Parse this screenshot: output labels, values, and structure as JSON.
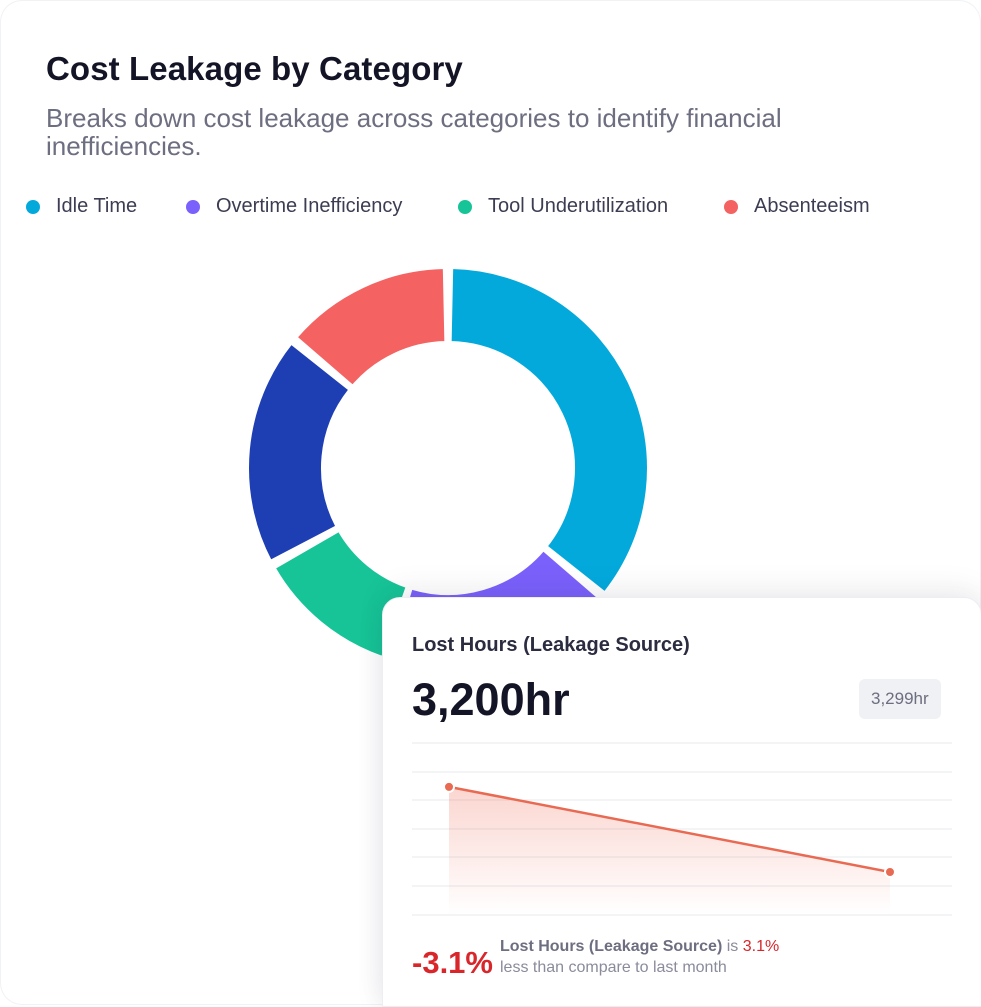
{
  "header": {
    "title": "Cost Leakage by Category",
    "subtitle": "Breaks down cost leakage across categories to identify financial inefficiencies."
  },
  "colors": {
    "idle_time": "#04a9dc",
    "overtime": "#7b61fb",
    "tool_underutilization": "#17c497",
    "absenteeism": "#f46262",
    "dark_blue": "#1e3eb4",
    "negative": "#d8262b"
  },
  "chart_data": [
    {
      "type": "pie",
      "variant": "donut",
      "legend": [
        "Idle Time",
        "Overtime Inefficiency",
        "Tool Underutilization",
        "Absenteeism"
      ],
      "legend_placement": "top",
      "slices": [
        {
          "name": "Idle Time",
          "value": 36,
          "color": "#04a9dc"
        },
        {
          "name": "Overtime Inefficiency",
          "value": 19,
          "color": "#7b61fb"
        },
        {
          "name": "Tool Underutilization",
          "value": 12,
          "color": "#17c497"
        },
        {
          "name": "",
          "value": 19,
          "color": "#1e3eb4"
        },
        {
          "name": "Absenteeism",
          "value": 14,
          "color": "#f46262"
        }
      ]
    },
    {
      "type": "line",
      "series": [
        {
          "values": [
            3299,
            3200
          ],
          "color": "#e96a52"
        }
      ],
      "grid": true
    }
  ],
  "stat_card": {
    "title": "Lost Hours (Leakage Source)",
    "value": "3,200hr",
    "previous": "3,299hr",
    "change": "-3.1%",
    "note_metric": "Lost Hours (Leakage Source)",
    "note_is": "is",
    "note_pct": "3.1%",
    "note_rest": "less than compare to last month"
  }
}
